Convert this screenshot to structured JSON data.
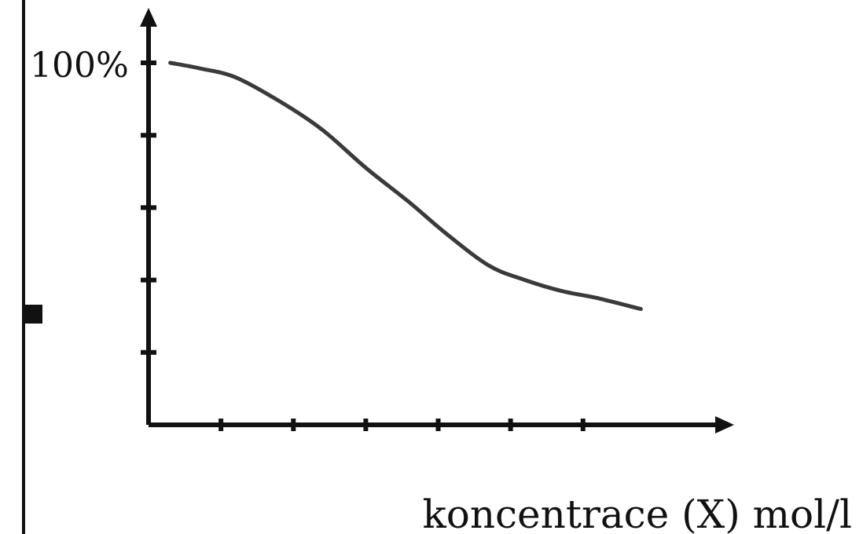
{
  "chart_data": {
    "type": "line",
    "title": "",
    "xlabel": "koncentrace (X) mol/l",
    "ylabel": "",
    "y_tick_label_top": "100%",
    "xlim": [
      0,
      8
    ],
    "ylim": [
      0,
      100
    ],
    "x_ticks": [
      1,
      2,
      3,
      4,
      5,
      6
    ],
    "y_ticks": [
      20,
      40,
      60,
      80,
      100
    ],
    "grid": false,
    "legend": "none",
    "series": [
      {
        "x": [
          0.3,
          0.7,
          1.2,
          1.8,
          2.4,
          3.0,
          3.6,
          4.1,
          4.7,
          5.2,
          5.7,
          6.2,
          6.8
        ],
        "y": [
          100,
          98.5,
          96,
          89.5,
          81.5,
          71,
          61.5,
          53,
          44,
          40,
          37,
          35,
          32
        ]
      }
    ],
    "colors": {
      "line": "#3a3a3a",
      "axis": "#111111",
      "text": "#111111"
    }
  }
}
